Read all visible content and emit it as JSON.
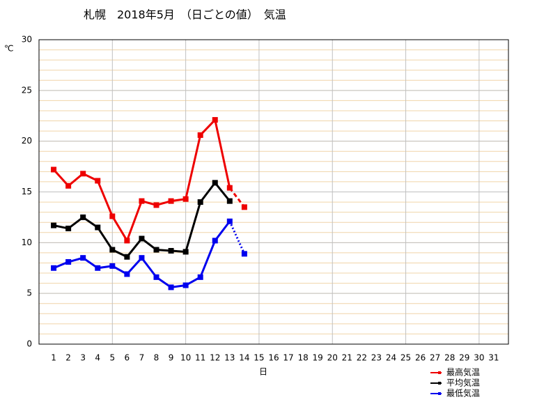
{
  "chart_data": {
    "type": "line",
    "title": "札幌　2018年5月　（日ごとの値）　気温",
    "y_label": "℃",
    "x_label": "日",
    "x": [
      1,
      2,
      3,
      4,
      5,
      6,
      7,
      8,
      9,
      10,
      11,
      12,
      13,
      14,
      15,
      16,
      17,
      18,
      19,
      20,
      21,
      22,
      23,
      24,
      25,
      26,
      27,
      28,
      29,
      30,
      31
    ],
    "xlim": [
      0,
      32
    ],
    "xticks": [
      1,
      2,
      3,
      4,
      5,
      6,
      7,
      8,
      9,
      10,
      11,
      12,
      13,
      14,
      15,
      16,
      17,
      18,
      19,
      20,
      21,
      22,
      23,
      24,
      25,
      26,
      27,
      28,
      29,
      30,
      31
    ],
    "x_major_grid": [
      5,
      10,
      15,
      20,
      25,
      30
    ],
    "ylim": [
      0,
      30
    ],
    "yticks": [
      0,
      5,
      10,
      15,
      20,
      25,
      30
    ],
    "y_minor_step": 1,
    "grid": true,
    "legend": "bottom-right",
    "series": [
      {
        "name": "最高気温",
        "color": "#ee0000",
        "last_segment": "dashed",
        "values": [
          17.2,
          15.6,
          16.8,
          16.1,
          12.6,
          10.2,
          14.1,
          13.7,
          14.1,
          14.3,
          20.6,
          22.1,
          15.4,
          13.5,
          null,
          null,
          null,
          null,
          null,
          null,
          null,
          null,
          null,
          null,
          null,
          null,
          null,
          null,
          null,
          null,
          null
        ]
      },
      {
        "name": "平均気温",
        "color": "#000000",
        "last_segment": "solid",
        "values": [
          11.7,
          11.4,
          12.5,
          11.5,
          9.3,
          8.6,
          10.4,
          9.3,
          9.2,
          9.1,
          14.0,
          15.9,
          14.1,
          null,
          null,
          null,
          null,
          null,
          null,
          null,
          null,
          null,
          null,
          null,
          null,
          null,
          null,
          null,
          null,
          null,
          null
        ]
      },
      {
        "name": "最低気温",
        "color": "#0000ee",
        "last_segment": "dotted",
        "values": [
          7.5,
          8.1,
          8.5,
          7.5,
          7.7,
          6.9,
          8.5,
          6.6,
          5.6,
          5.8,
          6.6,
          10.2,
          12.1,
          8.9,
          null,
          null,
          null,
          null,
          null,
          null,
          null,
          null,
          null,
          null,
          null,
          null,
          null,
          null,
          null,
          null,
          null
        ]
      }
    ]
  }
}
